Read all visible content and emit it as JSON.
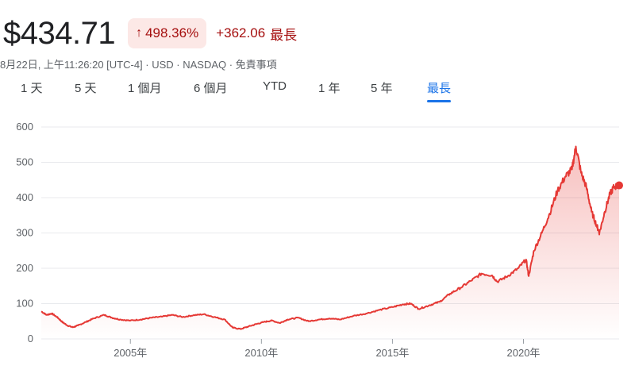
{
  "header": {
    "price": "$434.71",
    "change_pct": "498.36%",
    "change_abs": "+362.06",
    "period": "最長",
    "meta": "8月22日, 上午11:26:20 [UTC-4] · USD · NASDAQ · 免責事項"
  },
  "tabs": [
    {
      "label": "1 天",
      "active": false
    },
    {
      "label": "5 天",
      "active": false
    },
    {
      "label": "1 個月",
      "active": false
    },
    {
      "label": "6 個月",
      "active": false
    },
    {
      "label": "YTD",
      "active": false
    },
    {
      "label": "1 年",
      "active": false
    },
    {
      "label": "5 年",
      "active": false
    },
    {
      "label": "最長",
      "active": true
    }
  ],
  "colors": {
    "line": "#e53935",
    "grid": "#e8eaed",
    "accent": "#1a73e8",
    "change_bg": "#fce8e6",
    "change_text": "#a50e0e"
  },
  "chart_data": {
    "type": "area",
    "xlabel": "",
    "ylabel": "",
    "ylim": [
      0,
      600
    ],
    "yticks": [
      0,
      100,
      200,
      300,
      400,
      500,
      600
    ],
    "xticks": [
      {
        "value": 2005,
        "label": "2005年"
      },
      {
        "value": 2010,
        "label": "2010年"
      },
      {
        "value": 2015,
        "label": "2015年"
      },
      {
        "value": 2020,
        "label": "2020年"
      }
    ],
    "xlim": [
      2001.6,
      2023.65
    ],
    "grid": true,
    "series": [
      {
        "x": [
          2001.6,
          2001.8,
          2002.0,
          2002.2,
          2002.4,
          2002.6,
          2002.8,
          2003.0,
          2003.3,
          2003.6,
          2004.0,
          2004.3,
          2004.6,
          2005.0,
          2005.4,
          2005.8,
          2006.2,
          2006.6,
          2007.0,
          2007.4,
          2007.8,
          2008.2,
          2008.6,
          2008.9,
          2009.2,
          2009.5,
          2009.8,
          2010.1,
          2010.4,
          2010.7,
          2011.0,
          2011.4,
          2011.8,
          2012.2,
          2012.6,
          2013.0,
          2013.5,
          2014.0,
          2014.5,
          2015.0,
          2015.4,
          2015.7,
          2016.0,
          2016.4,
          2016.8,
          2017.2,
          2017.6,
          2018.0,
          2018.4,
          2018.8,
          2019.0,
          2019.4,
          2019.8,
          2020.1,
          2020.2,
          2020.4,
          2020.7,
          2021.0,
          2021.3,
          2021.6,
          2021.85,
          2022.0,
          2022.2,
          2022.4,
          2022.6,
          2022.8,
          2022.9,
          2023.1,
          2023.3,
          2023.45,
          2023.65
        ],
        "y": [
          78,
          68,
          72,
          62,
          48,
          38,
          33,
          38,
          48,
          58,
          68,
          60,
          55,
          52,
          55,
          60,
          63,
          68,
          62,
          67,
          70,
          62,
          55,
          32,
          28,
          35,
          42,
          48,
          52,
          45,
          55,
          60,
          50,
          55,
          58,
          55,
          65,
          72,
          82,
          90,
          98,
          100,
          85,
          95,
          105,
          128,
          145,
          165,
          185,
          180,
          162,
          178,
          200,
          225,
          178,
          250,
          300,
          355,
          420,
          460,
          480,
          545,
          470,
          430,
          360,
          320,
          300,
          360,
          410,
          430,
          435
        ]
      }
    ],
    "last_value": 434.71
  }
}
